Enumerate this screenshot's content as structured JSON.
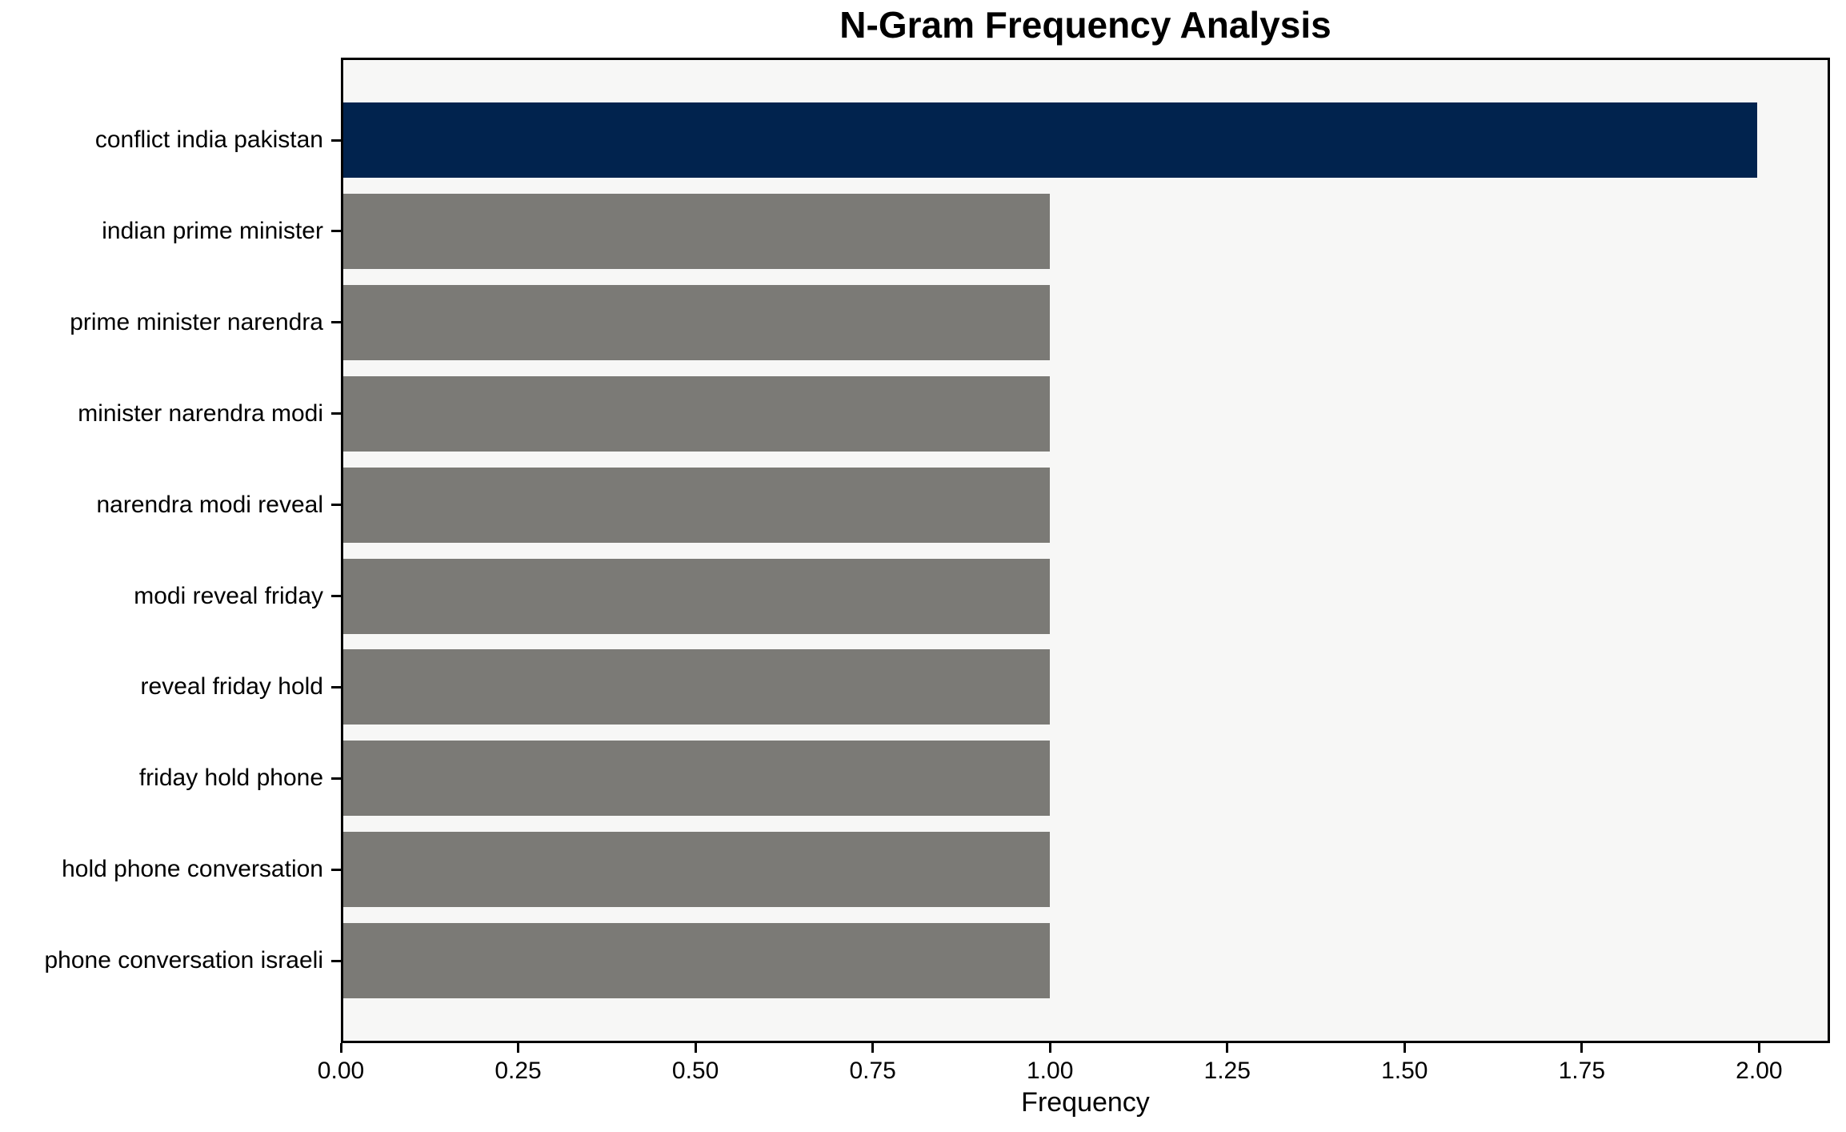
{
  "chart_data": {
    "type": "bar",
    "orientation": "horizontal",
    "title": "N-Gram Frequency Analysis",
    "xlabel": "Frequency",
    "ylabel": "",
    "categories": [
      "conflict india pakistan",
      "indian prime minister",
      "prime minister narendra",
      "minister narendra modi",
      "narendra modi reveal",
      "modi reveal friday",
      "reveal friday hold",
      "friday hold phone",
      "hold phone conversation",
      "phone conversation israeli"
    ],
    "values": [
      2.0,
      1.0,
      1.0,
      1.0,
      1.0,
      1.0,
      1.0,
      1.0,
      1.0,
      1.0
    ],
    "highlight_index": 0,
    "x_ticks": [
      {
        "value": 0.0,
        "label": "0.00"
      },
      {
        "value": 0.25,
        "label": "0.25"
      },
      {
        "value": 0.5,
        "label": "0.50"
      },
      {
        "value": 0.75,
        "label": "0.75"
      },
      {
        "value": 1.0,
        "label": "1.00"
      },
      {
        "value": 1.25,
        "label": "1.25"
      },
      {
        "value": 1.5,
        "label": "1.50"
      },
      {
        "value": 1.75,
        "label": "1.75"
      },
      {
        "value": 2.0,
        "label": "2.00"
      }
    ],
    "xlim": [
      0,
      2.1
    ],
    "grid": false,
    "legend_position": "none",
    "colors": {
      "highlight_bar": "#01234E",
      "default_bar": "#7B7A76",
      "plot_background": "#F7F7F6",
      "spine": "#000000",
      "text": "#000000"
    }
  }
}
